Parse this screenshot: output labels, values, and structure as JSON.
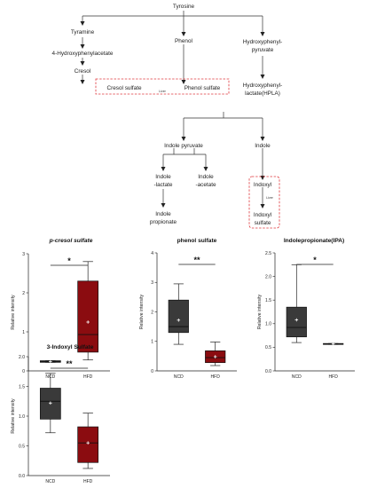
{
  "pathway": {
    "tyrosine": "Tyrosine",
    "tyramine": "Tyramine",
    "hpa": "4-Hydroxyphenylacetate",
    "cresol": "Cresol",
    "cresol_sulfate": "Cresol sulfate",
    "liver": "Liver",
    "phenol": "Phenol",
    "phenol_sulfate": "Phenol sulfate",
    "hpp1": "Hydroxyphenyl-",
    "hpp2": "pyruvate",
    "hpla1": "Hydroxyphenyl-",
    "hpla2": "lactate(HPLA)",
    "indole_pyruvate": "Indole pyruvate",
    "indole": "Indole",
    "il1": "Indole",
    "il2": "-lactate",
    "ia1": "Indole",
    "ia2": "-acetate",
    "ip1": "Indole",
    "ip2": "propionate",
    "indoxyl": "Indoxyl",
    "is1": "Indoxyl",
    "is2": "sulfate"
  },
  "chart_data": [
    {
      "type": "box",
      "title": "p-cresol sulfate",
      "ylabel": "Relative intensity",
      "categories": [
        "NCD",
        "HFD"
      ],
      "ylim": [
        0,
        3
      ],
      "yticks": [
        0,
        1,
        2,
        3
      ],
      "significance": "*",
      "boxes": [
        {
          "min": 0.22,
          "q1": 0.22,
          "median": 0.24,
          "q3": 0.26,
          "max": 0.26,
          "mean": 0.24,
          "color": "#3a3a3a"
        },
        {
          "min": 0.28,
          "q1": 0.48,
          "median": 0.93,
          "q3": 2.3,
          "max": 2.8,
          "mean": 1.25,
          "color": "#8b0c10"
        }
      ]
    },
    {
      "type": "box",
      "title": "phenol sulfate",
      "ylabel": "Relative intensity",
      "categories": [
        "NCD",
        "HFD"
      ],
      "ylim": [
        0,
        4
      ],
      "yticks": [
        0,
        1,
        2,
        3,
        4
      ],
      "significance": "**",
      "boxes": [
        {
          "min": 0.9,
          "q1": 1.3,
          "median": 1.5,
          "q3": 2.4,
          "max": 2.95,
          "mean": 1.72,
          "color": "#3a3a3a"
        },
        {
          "min": 0.18,
          "q1": 0.28,
          "median": 0.45,
          "q3": 0.68,
          "max": 0.98,
          "mean": 0.48,
          "color": "#8b0c10"
        }
      ]
    },
    {
      "type": "box",
      "title": "Indolepropionate(IPA)",
      "ylabel": "Relative intensity",
      "categories": [
        "NCD",
        "HFD"
      ],
      "ylim": [
        0,
        2.5
      ],
      "yticks": [
        0.0,
        0.5,
        1.0,
        1.5,
        2.0,
        2.5
      ],
      "significance": "*",
      "boxes": [
        {
          "min": 0.6,
          "q1": 0.72,
          "median": 0.92,
          "q3": 1.35,
          "max": 2.25,
          "mean": 1.08,
          "color": "#3a3a3a"
        },
        {
          "min": 0.56,
          "q1": 0.56,
          "median": 0.57,
          "q3": 0.58,
          "max": 0.58,
          "mean": 0.57,
          "color": "#8b0c10"
        }
      ]
    },
    {
      "type": "box",
      "title": "3-Indoxyl Sulfate",
      "ylabel": "Relative intensity",
      "categories": [
        "NCD",
        "HFD"
      ],
      "ylim": [
        0,
        2.0
      ],
      "yticks": [
        0.0,
        0.5,
        1.0,
        1.5,
        2.0
      ],
      "significance": "**",
      "boxes": [
        {
          "min": 0.72,
          "q1": 0.95,
          "median": 1.25,
          "q3": 1.47,
          "max": 1.72,
          "mean": 1.22,
          "color": "#3a3a3a"
        },
        {
          "min": 0.12,
          "q1": 0.22,
          "median": 0.55,
          "q3": 0.82,
          "max": 1.05,
          "mean": 0.55,
          "color": "#8b0c10"
        }
      ]
    }
  ]
}
